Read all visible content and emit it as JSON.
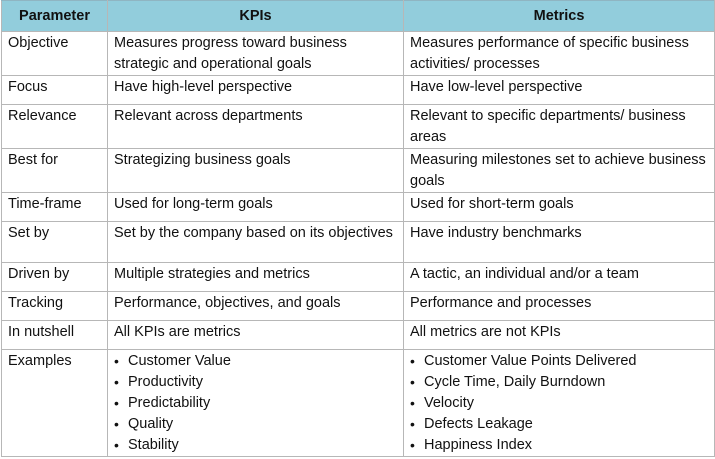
{
  "header": {
    "parameter": "Parameter",
    "kpis": "KPIs",
    "metrics": "Metrics"
  },
  "rows": [
    {
      "parameter": "Objective",
      "kpis": "Measures progress toward business strategic and operational goals",
      "metrics": "Measures performance of specific business activities/ processes"
    },
    {
      "parameter": "Focus",
      "kpis": "Have high-level perspective",
      "metrics": "Have low-level perspective"
    },
    {
      "parameter": "Relevance",
      "kpis": "Relevant across departments",
      "metrics": "Relevant to specific departments/ business areas"
    },
    {
      "parameter": "Best for",
      "kpis": "Strategizing business goals",
      "metrics": "Measuring milestones set to achieve business goals"
    },
    {
      "parameter": "Time-frame",
      "kpis": "Used for long-term goals",
      "metrics": "Used for short-term goals"
    },
    {
      "parameter": "Set by",
      "kpis": "Set by the company based on its objectives",
      "metrics": "Have industry benchmarks"
    },
    {
      "parameter": "Driven by",
      "kpis": "Multiple strategies and metrics",
      "metrics": "A tactic, an individual and/or a team"
    },
    {
      "parameter": "Tracking",
      "kpis": "Performance, objectives, and goals",
      "metrics": "Performance and processes"
    },
    {
      "parameter": "In nutshell",
      "kpis": "All KPIs are metrics",
      "metrics": "All metrics are not KPIs"
    }
  ],
  "examples": {
    "parameter": "Examples",
    "bullet": "•",
    "kpis": [
      "Customer Value",
      "Productivity",
      "Predictability",
      "Quality",
      "Stability"
    ],
    "metrics": [
      "Customer Value Points Delivered",
      "Cycle Time, Daily Burndown",
      "Velocity",
      "Defects Leakage",
      "Happiness Index"
    ]
  }
}
